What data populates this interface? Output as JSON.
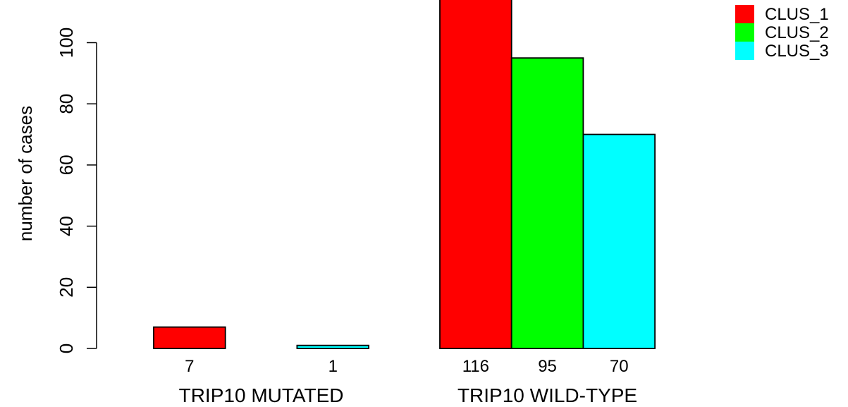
{
  "chart_data": {
    "type": "bar",
    "ylabel": "number of cases",
    "ylim": [
      0,
      100
    ],
    "yticks": [
      0,
      20,
      40,
      60,
      80,
      100
    ],
    "groups": [
      {
        "label": "TRIP10 MUTATED",
        "values": [
          7,
          0,
          1
        ],
        "value_labels": [
          "7",
          "",
          "1"
        ]
      },
      {
        "label": "TRIP10 WILD-TYPE",
        "values": [
          116,
          95,
          70
        ],
        "value_labels": [
          "116",
          "95",
          "70"
        ]
      }
    ],
    "series": [
      {
        "name": "CLUS_1",
        "color": "#ff0000"
      },
      {
        "name": "CLUS_2",
        "color": "#00ff00"
      },
      {
        "name": "CLUS_3",
        "color": "#00ffff"
      }
    ],
    "legend_position": "top-right",
    "grid": false
  }
}
